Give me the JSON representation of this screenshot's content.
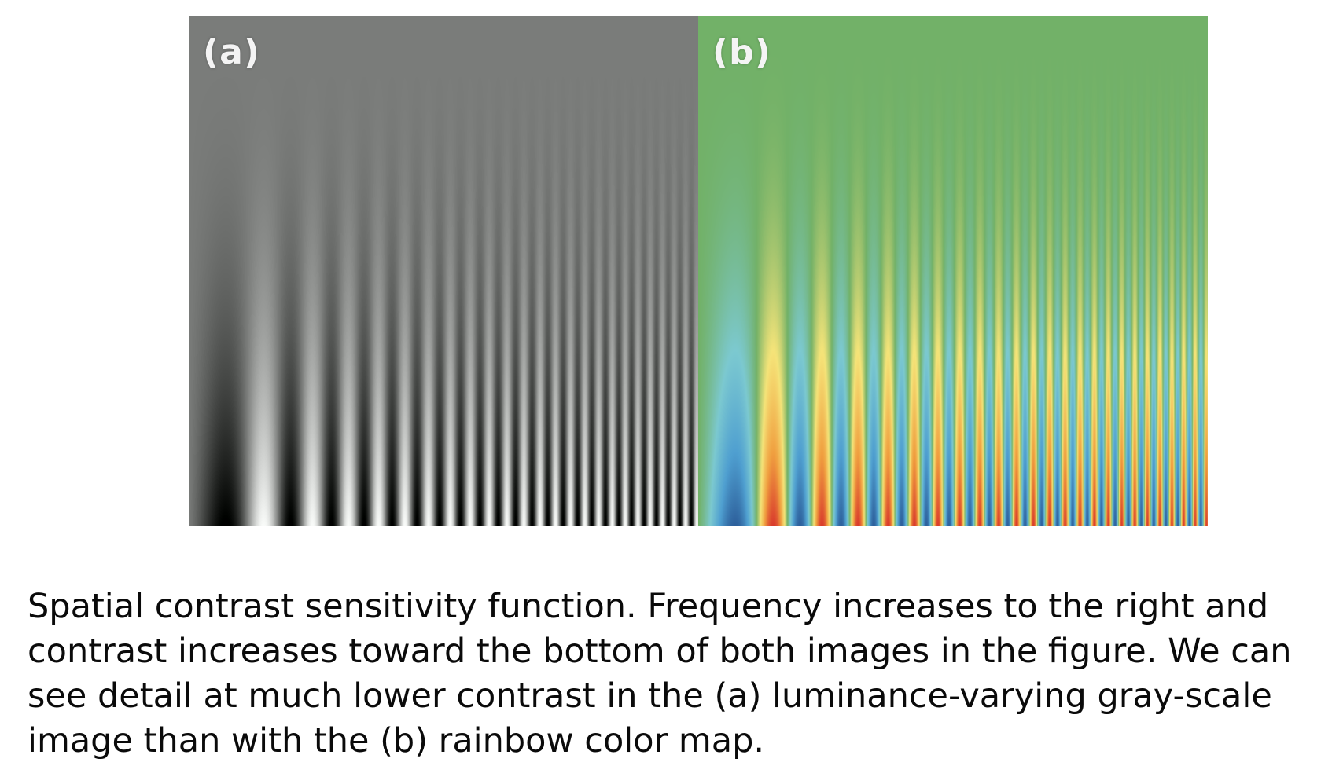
{
  "figure": {
    "panels": [
      {
        "label": "(a)",
        "colormap": "gray-scale",
        "background_color": "#7a7c7a"
      },
      {
        "label": "(b)",
        "colormap": "rainbow",
        "background_color": "#72b168",
        "colors": [
          "#2d5f9b",
          "#4f9fd0",
          "#7cc9d0",
          "#72b168",
          "#f5e479",
          "#f0a040",
          "#d93a2c"
        ]
      }
    ]
  },
  "caption": "Spatial contrast sensitivity function. Frequency increases to the right and\ncontrast increases toward the bottom of both images in the figure. We can\nsee detail at much lower contrast in the (a) luminance-varying gray-scale\nimage than with the (b) rainbow color map."
}
